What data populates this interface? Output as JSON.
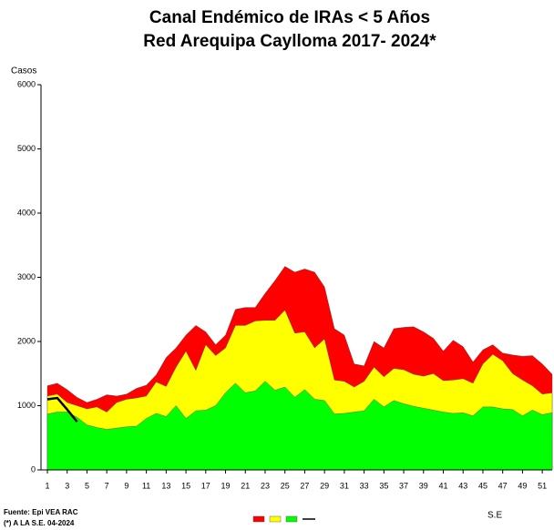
{
  "chart_data": {
    "type": "area",
    "title": "Canal Endémico de IRAs < 5 Años",
    "subtitle": "Red Arequipa Caylloma 2017- 2024*",
    "y_label": "Casos",
    "x_label": "S.E",
    "source": "Fuente: Epi VEA RAC",
    "note": "(*) A LA S.E. 04-2024",
    "x": [
      1,
      2,
      3,
      4,
      5,
      6,
      7,
      8,
      9,
      10,
      11,
      12,
      13,
      14,
      15,
      16,
      17,
      18,
      19,
      20,
      21,
      22,
      23,
      24,
      25,
      26,
      27,
      28,
      29,
      30,
      31,
      32,
      33,
      34,
      35,
      36,
      37,
      38,
      39,
      40,
      41,
      42,
      43,
      44,
      45,
      46,
      47,
      48,
      49,
      50,
      51,
      52
    ],
    "xlim": [
      1,
      52
    ],
    "xticks": [
      1,
      3,
      5,
      7,
      9,
      11,
      13,
      15,
      17,
      19,
      21,
      23,
      25,
      27,
      29,
      31,
      33,
      35,
      37,
      39,
      41,
      43,
      45,
      47,
      49,
      51
    ],
    "ylim": [
      0,
      6000
    ],
    "yticks": [
      0,
      1000,
      2000,
      3000,
      4000,
      5000,
      6000
    ],
    "series": [
      {
        "color": "#ff0000",
        "values": [
          1310,
          1350,
          1250,
          1130,
          1050,
          1100,
          1170,
          1150,
          1180,
          1270,
          1320,
          1480,
          1750,
          1900,
          2100,
          2250,
          2150,
          1950,
          2100,
          2500,
          2530,
          2530,
          2750,
          2950,
          3170,
          3080,
          3130,
          3080,
          2850,
          2200,
          2100,
          1650,
          1620,
          2000,
          1900,
          2200,
          2220,
          2230,
          2150,
          2050,
          1850,
          2020,
          1920,
          1680,
          1870,
          1950,
          1820,
          1790,
          1770,
          1780,
          1650,
          1490
        ]
      },
      {
        "color": "#ffff00",
        "values": [
          1150,
          1180,
          1050,
          1000,
          950,
          980,
          900,
          1050,
          1100,
          1120,
          1150,
          1370,
          1300,
          1600,
          1850,
          1550,
          1950,
          1780,
          1900,
          2250,
          2250,
          2320,
          2330,
          2330,
          2490,
          2130,
          2150,
          1900,
          2040,
          1400,
          1380,
          1290,
          1380,
          1600,
          1450,
          1580,
          1560,
          1490,
          1460,
          1500,
          1390,
          1400,
          1420,
          1350,
          1650,
          1800,
          1700,
          1500,
          1400,
          1310,
          1180,
          1200
        ]
      },
      {
        "color": "#00ff00",
        "values": [
          870,
          900,
          900,
          820,
          700,
          660,
          630,
          650,
          670,
          680,
          800,
          880,
          830,
          1000,
          800,
          920,
          930,
          1000,
          1200,
          1350,
          1200,
          1230,
          1380,
          1240,
          1290,
          1130,
          1250,
          1100,
          1080,
          870,
          880,
          900,
          920,
          1100,
          980,
          1080,
          1030,
          990,
          960,
          930,
          900,
          880,
          890,
          840,
          980,
          980,
          950,
          940,
          840,
          930,
          860,
          890
        ]
      },
      {
        "color": "#000000",
        "type": "line",
        "values": [
          1100,
          1120,
          940,
          750,
          null,
          null,
          null,
          null,
          null,
          null,
          null,
          null,
          null,
          null,
          null,
          null,
          null,
          null,
          null,
          null,
          null,
          null,
          null,
          null,
          null,
          null,
          null,
          null,
          null,
          null,
          null,
          null,
          null,
          null,
          null,
          null,
          null,
          null,
          null,
          null,
          null,
          null,
          null,
          null,
          null,
          null,
          null,
          null,
          null,
          null,
          null,
          null
        ]
      }
    ]
  }
}
